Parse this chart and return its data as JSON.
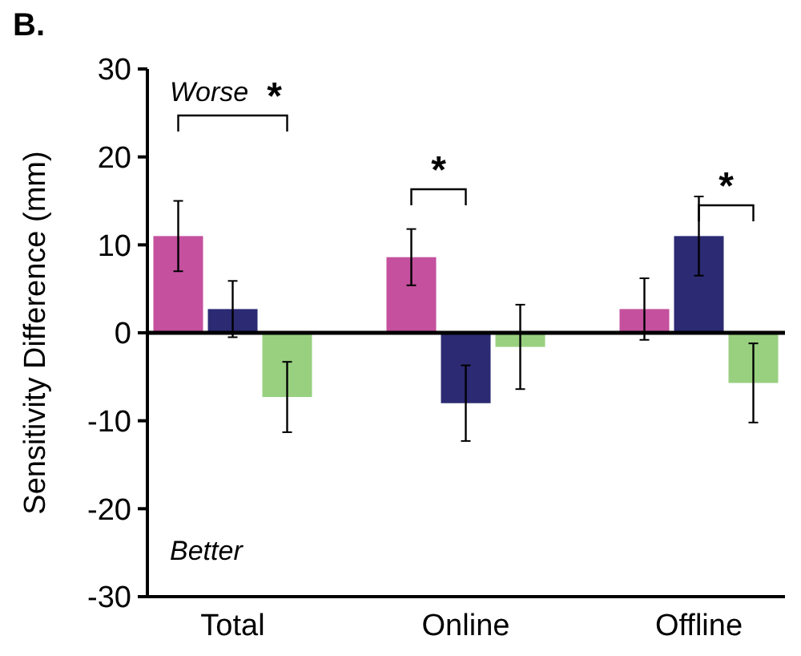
{
  "chart_data": {
    "type": "bar",
    "title": "B.",
    "ylabel": "Sensitivity Difference (mm)",
    "categories": [
      "Total",
      "Online",
      "Offline"
    ],
    "series": [
      {
        "color": "#c4509e",
        "values": [
          11,
          8.6,
          2.7
        ],
        "errors": [
          4,
          3.2,
          3.5
        ]
      },
      {
        "color": "#2b2a73",
        "values": [
          2.7,
          -8,
          11
        ],
        "errors": [
          3.2,
          4.3,
          4.5
        ]
      },
      {
        "color": "#98d080",
        "values": [
          -7.3,
          -1.6,
          -5.7
        ],
        "errors": [
          4,
          4.8,
          4.5
        ]
      }
    ],
    "ylim": [
      -30,
      30
    ],
    "yticks": [
      -30,
      -20,
      -10,
      0,
      10,
      20,
      30
    ],
    "grid": false,
    "ref_lines": [
      {
        "axis": "y",
        "value": 0,
        "color": "#000000"
      }
    ],
    "annotations": [
      "Worse",
      "Better",
      "*",
      "*",
      "*"
    ]
  }
}
